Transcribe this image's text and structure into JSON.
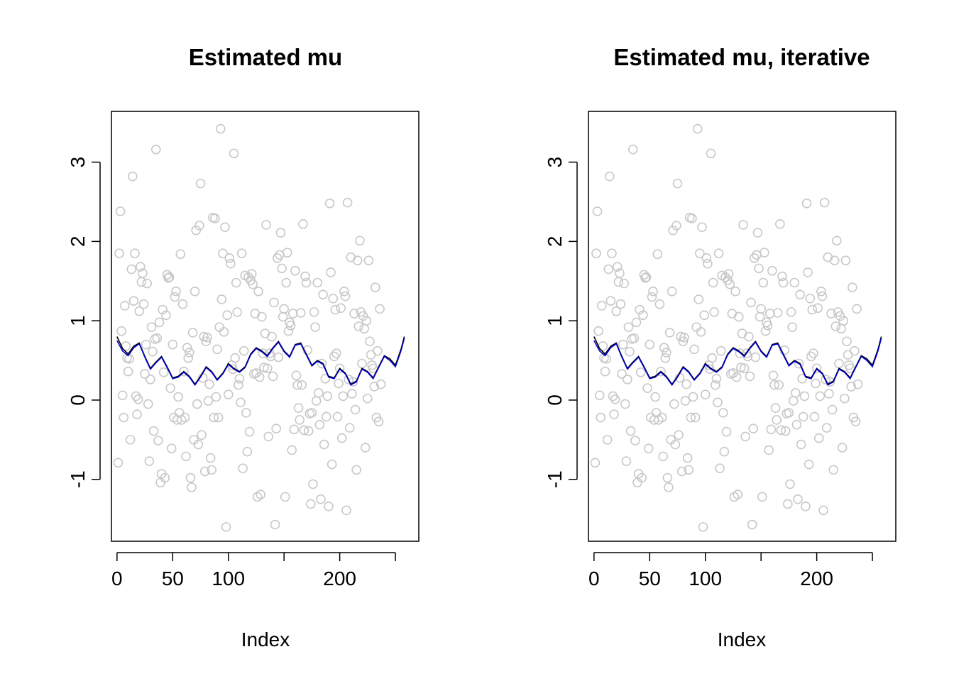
{
  "colors": {
    "points": "#c8c8c8",
    "true_mu": "#000000",
    "estimated_mu": "#0000cd"
  },
  "chart_data": [
    {
      "type": "scatter",
      "title": "Estimated mu",
      "xlabel": "Index",
      "ylabel": "",
      "x_ticks": [
        0,
        50,
        100,
        200
      ],
      "x_axis_ticks_unlabeled": [
        150,
        250
      ],
      "y_ticks": [
        -1,
        0,
        1,
        2,
        3
      ],
      "xlim": [
        -5,
        271
      ],
      "ylim": [
        -1.78,
        3.64
      ],
      "grid": false,
      "legend": "none",
      "series_ref": "shared"
    },
    {
      "type": "scatter",
      "title": "Estimated mu, iterative",
      "xlabel": "Index",
      "ylabel": "",
      "x_ticks": [
        0,
        50,
        100,
        200
      ],
      "x_axis_ticks_unlabeled": [
        150,
        250
      ],
      "y_ticks": [
        -1,
        0,
        1,
        2,
        3
      ],
      "xlim": [
        -5,
        271
      ],
      "ylim": [
        -1.78,
        3.64
      ],
      "grid": false,
      "legend": "none",
      "series_ref": "shared"
    }
  ],
  "shared_series": {
    "points_y": [
      -0.79,
      1.85,
      2.38,
      0.87,
      0.06,
      -0.22,
      1.19,
      0.68,
      0.53,
      0.36,
      0.52,
      -0.5,
      1.65,
      2.82,
      1.25,
      1.85,
      0.05,
      -0.18,
      0.01,
      1.12,
      1.68,
      1.49,
      1.6,
      1.21,
      0.33,
      0.7,
      1.47,
      -0.05,
      -0.77,
      0.26,
      0.92,
      0.61,
      -0.39,
      0.77,
      3.16,
      0.78,
      -0.51,
      0.98,
      -1.04,
      -0.93,
      1.14,
      0.35,
      -0.98,
      1.07,
      1.58,
      1.54,
      1.55,
      0.15,
      -0.61,
      0.7,
      -0.22,
      1.3,
      1.37,
      -0.25,
      0.04,
      -0.16,
      1.84,
      -0.25,
      1.21,
      0.36,
      -0.22,
      -0.71,
      0.66,
      0.53,
      0.6,
      -0.98,
      -1.1,
      0.85,
      -0.5,
      1.37,
      2.14,
      -0.05,
      -0.56,
      2.2,
      2.73,
      -0.44,
      0.28,
      0.8,
      -0.9,
      0.74,
      0.79,
      -0.01,
      0.2,
      -0.73,
      -0.88,
      2.3,
      -0.22,
      2.29,
      0.04,
      0.64,
      -0.22,
      0.92,
      3.42,
      1.27,
      1.85,
      0.86,
      2.18,
      -1.6,
      1.07,
      0.07,
      1.79,
      1.72,
      0.44,
      0.39,
      3.11,
      0.53,
      1.48,
      1.11,
      0.19,
      0.27,
      -0.03,
      1.85,
      -0.86,
      0.62,
      1.57,
      -0.16,
      -0.65,
      1.55,
      -0.4,
      1.51,
      1.59,
      1.46,
      0.33,
      1.09,
      0.34,
      -1.22,
      1.37,
      0.29,
      -1.19,
      1.05,
      0.59,
      0.41,
      0.84,
      2.21,
      0.4,
      -0.46,
      0.59,
      0.55,
      0.8,
      0.3,
      1.23,
      -1.57,
      -0.36,
      1.79,
      0.54,
      1.83,
      2.11,
      1.66,
      1.05,
      1.15,
      -1.22,
      1.48,
      1.86,
      0.87,
      0.98,
      0.94,
      -0.63,
      1.09,
      -0.37,
      1.63,
      0.31,
      0.19,
      -0.1,
      -0.25,
      1.1,
      0.19,
      2.22,
      -0.38,
      1.56,
      1.48,
      0.63,
      -0.39,
      -0.17,
      -1.31,
      -0.16,
      -1.06,
      1.11,
      0.92,
      -0.01,
      1.48,
      0.09,
      -0.31,
      -1.25,
      0.46,
      1.33,
      -0.56,
      0.27,
      -0.21,
      0.05,
      -1.34,
      2.48,
      1.61,
      -0.81,
      1.28,
      0.55,
      1.14,
      0.59,
      -0.21,
      0.21,
      0.4,
      1.16,
      -0.48,
      0.05,
      1.37,
      1.31,
      -1.39,
      2.49,
      0.26,
      -0.35,
      1.8,
      0.08,
      0.23,
      1.09,
      -0.12,
      -0.88,
      1.76,
      0.93,
      2.01,
      1.11,
      0.46,
      1.06,
      0.9,
      -0.6,
      1.0,
      0.02,
      1.76,
      0.74,
      0.57,
      0.44,
      0.4,
      0.17,
      1.42,
      -0.22,
      0.62,
      -0.27,
      1.15,
      0.2
    ],
    "true_mu_x": [
      0,
      5,
      10,
      15,
      20,
      25,
      30,
      35,
      40,
      45,
      50,
      55,
      60,
      65,
      70,
      75,
      80,
      85,
      90,
      95,
      100,
      105,
      110,
      115,
      120,
      125,
      130,
      135,
      140,
      145,
      150,
      155,
      160,
      165,
      170,
      175,
      180,
      185,
      190,
      195,
      200,
      205,
      210,
      215,
      220,
      225,
      230,
      235,
      240,
      245,
      250,
      255,
      258
    ],
    "true_mu_y": [
      0.8,
      0.65,
      0.58,
      0.68,
      0.72,
      0.55,
      0.4,
      0.48,
      0.55,
      0.42,
      0.28,
      0.3,
      0.36,
      0.3,
      0.2,
      0.3,
      0.42,
      0.36,
      0.26,
      0.34,
      0.46,
      0.4,
      0.36,
      0.42,
      0.58,
      0.66,
      0.62,
      0.56,
      0.66,
      0.74,
      0.62,
      0.55,
      0.7,
      0.72,
      0.58,
      0.44,
      0.5,
      0.46,
      0.3,
      0.28,
      0.4,
      0.34,
      0.2,
      0.24,
      0.4,
      0.36,
      0.28,
      0.42,
      0.56,
      0.52,
      0.44,
      0.64,
      0.8
    ],
    "estimated_mu_x": [
      0,
      5,
      10,
      15,
      20,
      25,
      30,
      35,
      40,
      45,
      50,
      55,
      60,
      65,
      70,
      75,
      80,
      85,
      90,
      95,
      100,
      105,
      110,
      115,
      120,
      125,
      130,
      135,
      140,
      145,
      150,
      155,
      160,
      165,
      170,
      175,
      180,
      185,
      190,
      195,
      200,
      205,
      210,
      215,
      220,
      225,
      230,
      235,
      240,
      245,
      250,
      255,
      258
    ],
    "estimated_mu_y": [
      0.75,
      0.62,
      0.56,
      0.66,
      0.71,
      0.54,
      0.39,
      0.47,
      0.54,
      0.41,
      0.27,
      0.29,
      0.35,
      0.29,
      0.19,
      0.29,
      0.41,
      0.35,
      0.25,
      0.33,
      0.45,
      0.39,
      0.35,
      0.41,
      0.57,
      0.65,
      0.61,
      0.55,
      0.65,
      0.73,
      0.61,
      0.54,
      0.69,
      0.71,
      0.57,
      0.43,
      0.49,
      0.45,
      0.29,
      0.27,
      0.39,
      0.33,
      0.19,
      0.23,
      0.39,
      0.35,
      0.27,
      0.41,
      0.55,
      0.5,
      0.42,
      0.62,
      0.78
    ]
  }
}
